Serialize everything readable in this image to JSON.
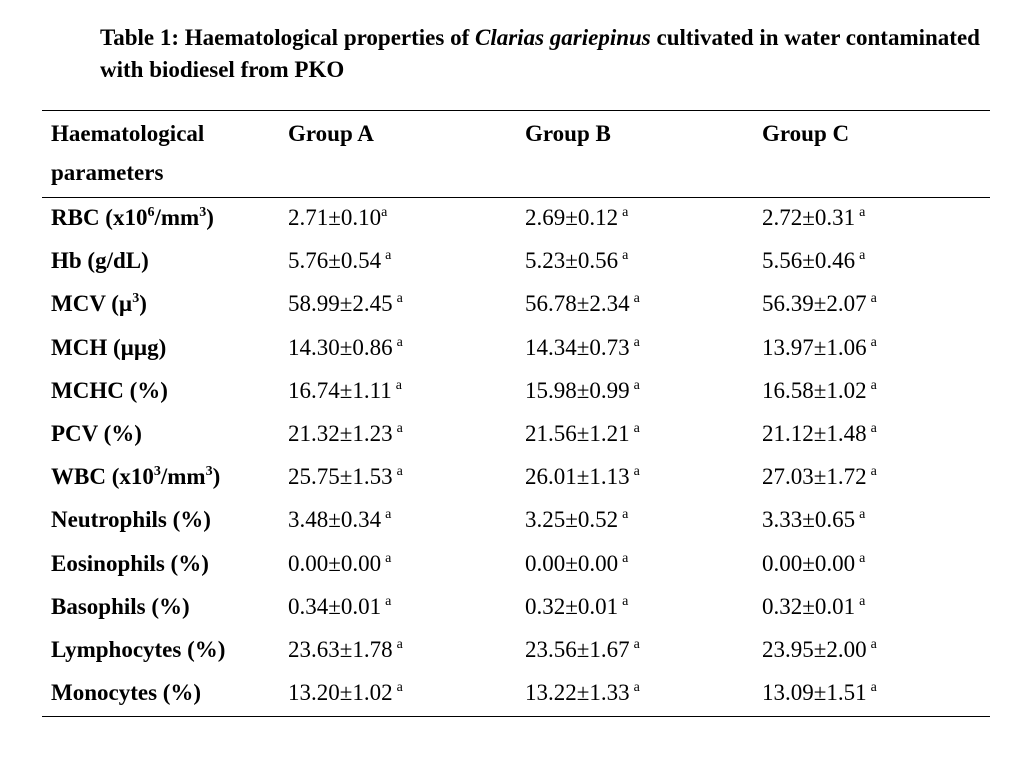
{
  "caption": {
    "prefix": "Table 1: Haematological properties of",
    "species": "Clarias gariepinus",
    "suffix": "cultivated in water contaminated with biodiesel from PKO"
  },
  "header": {
    "col0_line1": "Haematological",
    "col0_line2": "parameters",
    "col1": "Group A",
    "col2": "Group B",
    "col3": "Group C"
  },
  "rows": [
    {
      "param": "RBC (x10",
      "param_sup1": "6",
      "param_mid": "/mm",
      "param_sup2": "3",
      "param_end": ")",
      "a": "2.71±0.10",
      "a_sup": "a",
      "b": "2.69±0.12",
      "b_sup": "a",
      "c": "2.72±0.31",
      "c_sup": "a"
    },
    {
      "param": "Hb (g/dL)",
      "a": "5.76±0.54",
      "a_sup": "a",
      "b": "5.23±0.56",
      "b_sup": "a",
      "c": "5.56±0.46",
      "c_sup": "a"
    },
    {
      "param": "MCV (µ",
      "param_sup1": "3",
      "param_end": ")",
      "a": "58.99±2.45",
      "a_sup": "a",
      "b": "56.78±2.34",
      "b_sup": "a",
      "c": "56.39±2.07",
      "c_sup": "a"
    },
    {
      "param": "MCH (µµg)",
      "a": "14.30±0.86",
      "a_sup": "a",
      "b": "14.34±0.73",
      "b_sup": "a",
      "c": "13.97±1.06",
      "c_sup": "a"
    },
    {
      "param": "MCHC (%)",
      "a": "16.74±1.11",
      "a_sup": "a",
      "b": "15.98±0.99",
      "b_sup": "a",
      "c": "16.58±1.02",
      "c_sup": "a"
    },
    {
      "param": "PCV (%)",
      "a": "21.32±1.23",
      "a_sup": "a",
      "b": "21.56±1.21",
      "b_sup": "a",
      "c": "21.12±1.48",
      "c_sup": "a"
    },
    {
      "param": "WBC (x10",
      "param_sup1": "3",
      "param_mid": "/mm",
      "param_sup2": "3",
      "param_end": ")",
      "a": "25.75±1.53",
      "a_sup": "a",
      "b": "26.01±1.13",
      "b_sup": "a",
      "c": "27.03±1.72",
      "c_sup": "a"
    },
    {
      "param": "Neutrophils (%)",
      "a": "3.48±0.34",
      "a_sup": "a",
      "b": "3.25±0.52",
      "b_sup": "a",
      "c": "3.33±0.65",
      "c_sup": "a"
    },
    {
      "param": "Eosinophils (%)",
      "a": "0.00±0.00",
      "a_sup": "a",
      "b": "0.00±0.00",
      "b_sup": "a",
      "c": "0.00±0.00",
      "c_sup": "a"
    },
    {
      "param": "Basophils (%)",
      "a": "0.34±0.01",
      "a_sup": "a",
      "b": "0.32±0.01",
      "b_sup": "a",
      "c": "0.32±0.01",
      "c_sup": "a"
    },
    {
      "param": "Lymphocytes (%)",
      "a": "23.63±1.78",
      "a_sup": "a",
      "b": "23.56±1.67",
      "b_sup": "a",
      "c": "23.95±2.00",
      "c_sup": "a"
    },
    {
      "param": "Monocytes (%)",
      "a": "13.20±1.02",
      "a_sup": "a",
      "b": "13.22±1.33",
      "b_sup": "a",
      "c": "13.09±1.51",
      "c_sup": "a"
    }
  ]
}
